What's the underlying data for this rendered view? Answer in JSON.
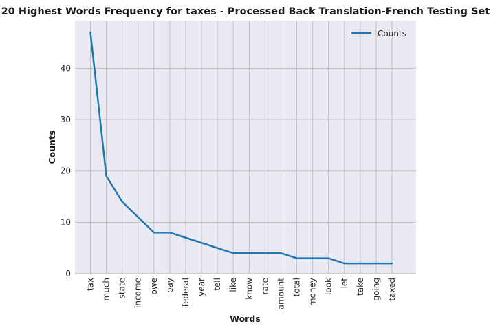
{
  "chart_data": {
    "type": "line",
    "title": "20 Highest Words Frequency for taxes - Processed Back Translation-French Testing Set",
    "xlabel": "Words",
    "ylabel": "Counts",
    "categories": [
      "tax",
      "much",
      "state",
      "income",
      "owe",
      "pay",
      "federal",
      "year",
      "tell",
      "like",
      "know",
      "rate",
      "amount",
      "total",
      "money",
      "look",
      "let",
      "take",
      "going",
      "taxed"
    ],
    "series": [
      {
        "name": "Counts",
        "values": [
          47,
          19,
          14,
          11,
          8,
          8,
          7,
          6,
          5,
          4,
          4,
          4,
          4,
          3,
          3,
          3,
          2,
          2,
          2,
          2
        ]
      }
    ],
    "yticks": [
      0,
      10,
      20,
      30,
      40
    ],
    "ylim": [
      0,
      49.3
    ],
    "grid": true,
    "legend_position": "upper right",
    "colors": {
      "line": "#1f77b4",
      "plot_bg": "#eaeaf2",
      "grid": "#c0c0c0"
    }
  }
}
